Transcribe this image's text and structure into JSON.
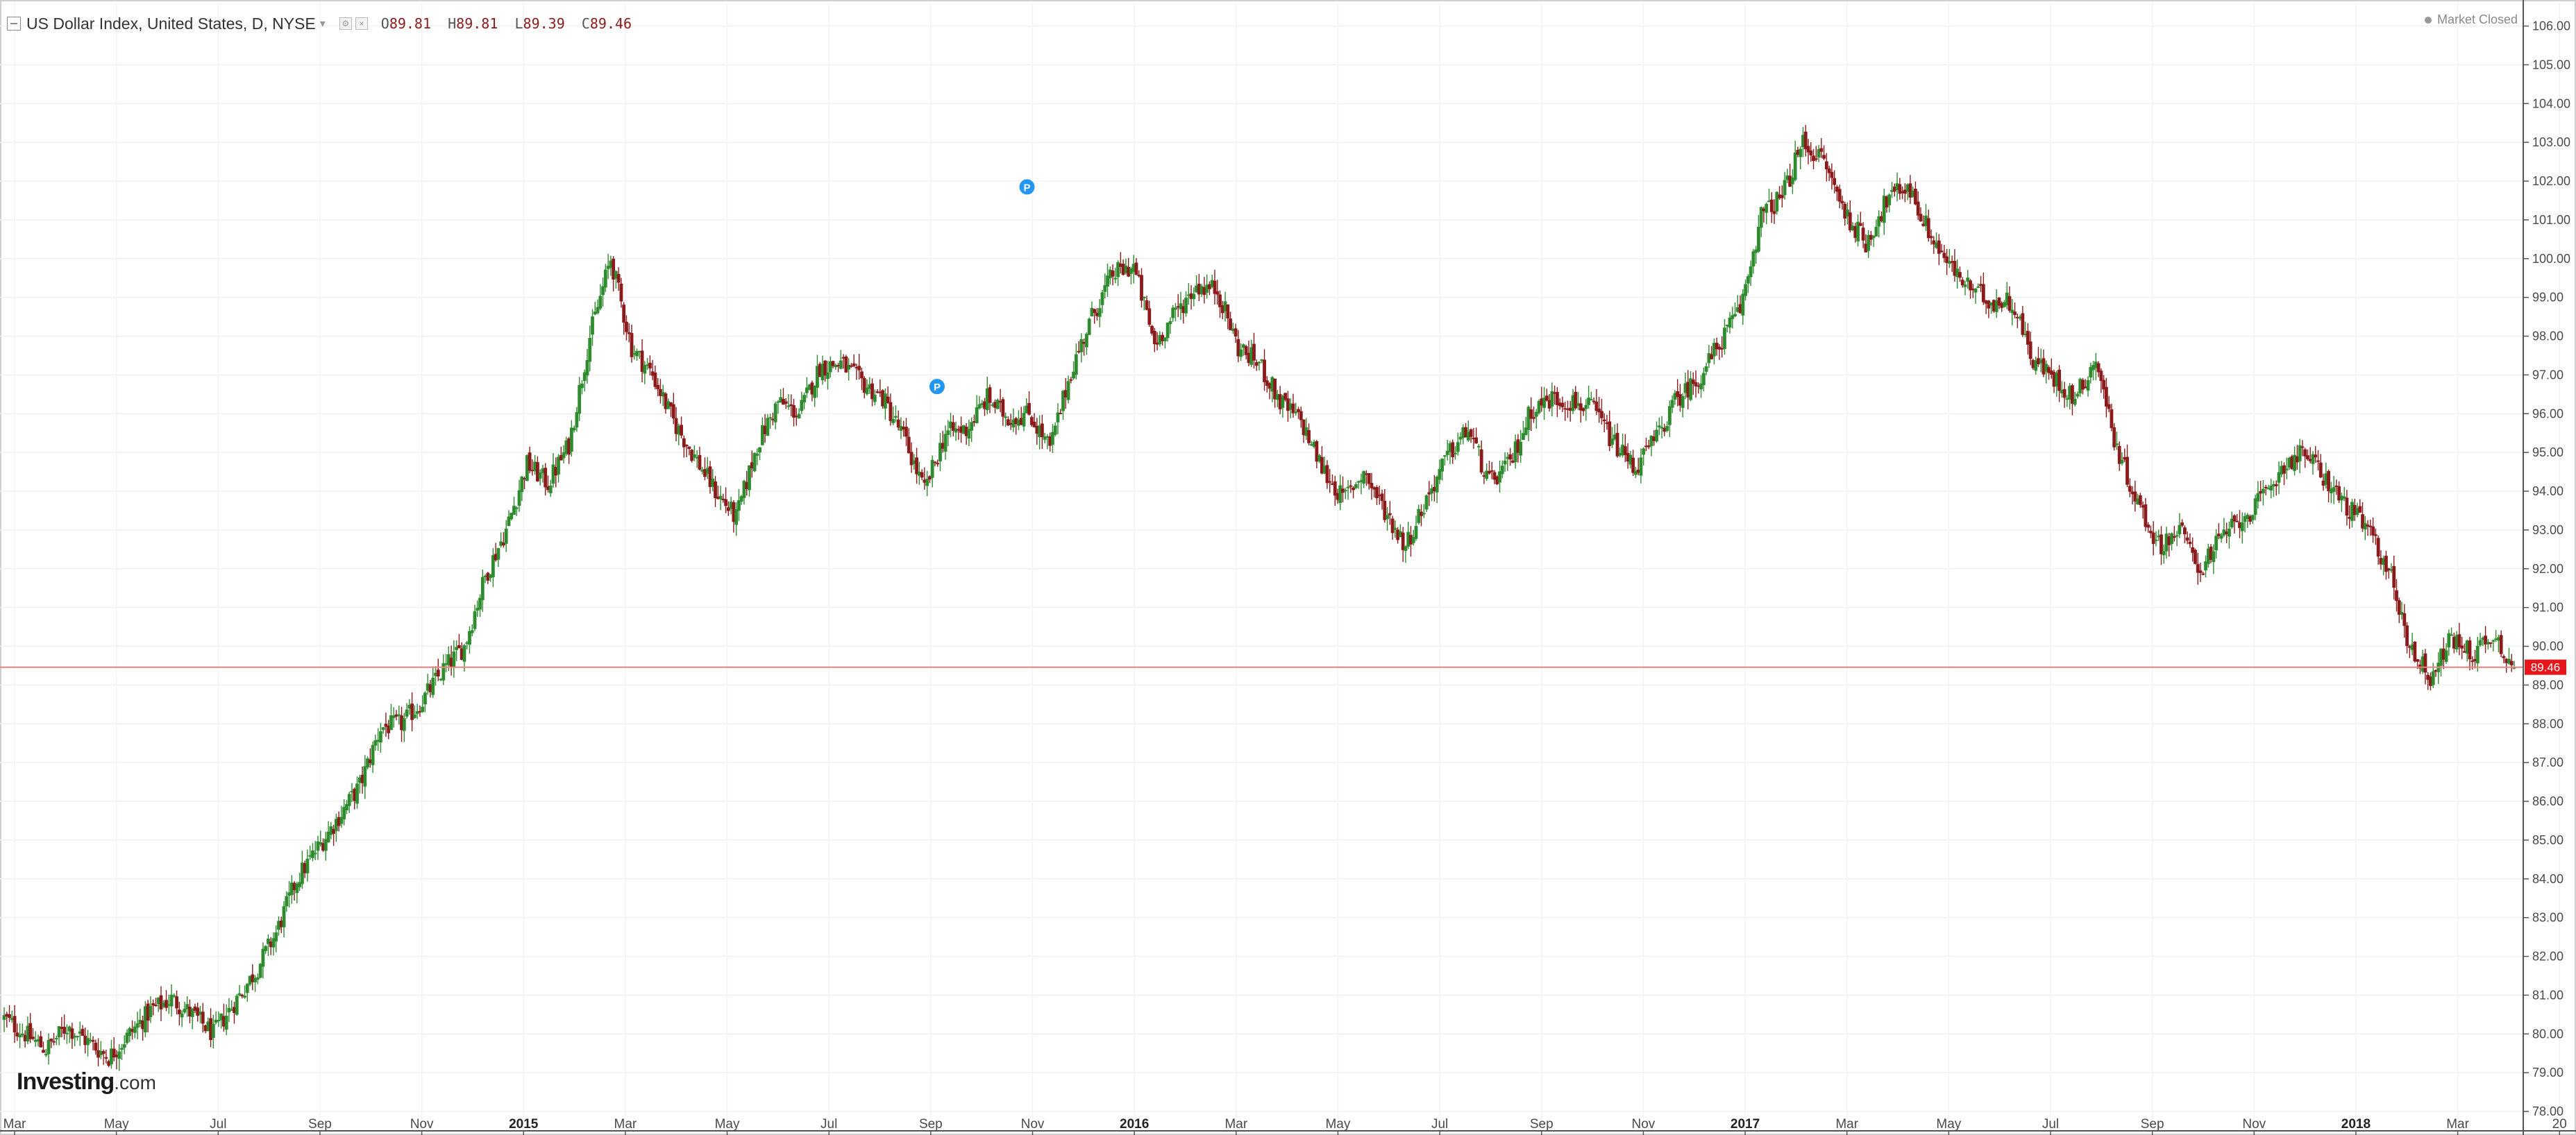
{
  "header": {
    "title": "US Dollar Index, United States, D, NYSE",
    "open_label": "O",
    "open": "89.81",
    "high_label": "H",
    "high": "89.81",
    "low_label": "L",
    "low": "89.39",
    "close_label": "C",
    "close": "89.46",
    "market_status": "Market Closed"
  },
  "logo": {
    "brand": "Investing",
    "suffix": ".com"
  },
  "colors": {
    "up": "#2e8b2e",
    "down": "#8b1a1a",
    "price_line": "#f08080",
    "price_tag": "#e8161a",
    "marker": "#2196f3"
  },
  "chart_data": {
    "type": "candlestick",
    "ylim": [
      77.5,
      106.6
    ],
    "y_ticks": [
      "78.00",
      "79.00",
      "80.00",
      "81.00",
      "82.00",
      "83.00",
      "84.00",
      "85.00",
      "86.00",
      "87.00",
      "88.00",
      "89.00",
      "90.00",
      "91.00",
      "92.00",
      "93.00",
      "94.00",
      "95.00",
      "96.00",
      "97.00",
      "98.00",
      "99.00",
      "100.00",
      "101.00",
      "102.00",
      "103.00",
      "104.00",
      "105.00",
      "106.00"
    ],
    "x_ticks": [
      {
        "label": "Mar",
        "year": false
      },
      {
        "label": "May",
        "year": false
      },
      {
        "label": "Jul",
        "year": false
      },
      {
        "label": "Sep",
        "year": false
      },
      {
        "label": "Nov",
        "year": false
      },
      {
        "label": "2015",
        "year": true
      },
      {
        "label": "Mar",
        "year": false
      },
      {
        "label": "May",
        "year": false
      },
      {
        "label": "Jul",
        "year": false
      },
      {
        "label": "Sep",
        "year": false
      },
      {
        "label": "Nov",
        "year": false
      },
      {
        "label": "2016",
        "year": true
      },
      {
        "label": "Mar",
        "year": false
      },
      {
        "label": "May",
        "year": false
      },
      {
        "label": "Jul",
        "year": false
      },
      {
        "label": "Sep",
        "year": false
      },
      {
        "label": "Nov",
        "year": false
      },
      {
        "label": "2017",
        "year": true
      },
      {
        "label": "Mar",
        "year": false
      },
      {
        "label": "May",
        "year": false
      },
      {
        "label": "Jul",
        "year": false
      },
      {
        "label": "Sep",
        "year": false
      },
      {
        "label": "Nov",
        "year": false
      },
      {
        "label": "2018",
        "year": true
      },
      {
        "label": "Mar",
        "year": false
      },
      {
        "label": "20",
        "year": false
      }
    ],
    "last_price": "89.46",
    "markers": [
      {
        "label": "P",
        "date_index": 44.6,
        "price": 96.7
      },
      {
        "label": "P",
        "date_index": 48.9,
        "price": 101.85
      }
    ],
    "path_note": "approximate closes sampled about every 2 weeks, Mar 2014 to Apr 2018",
    "closes": [
      80.4,
      80.0,
      79.6,
      80.2,
      79.8,
      79.4,
      80.0,
      80.6,
      80.9,
      80.5,
      80.0,
      80.8,
      81.6,
      82.6,
      84.0,
      84.8,
      85.6,
      86.4,
      87.9,
      88.0,
      88.6,
      89.4,
      90.0,
      91.8,
      93.0,
      94.7,
      94.2,
      95.2,
      98.0,
      100.0,
      97.7,
      97.0,
      95.8,
      94.9,
      94.0,
      93.3,
      95.2,
      96.3,
      96.0,
      97.2,
      97.3,
      96.8,
      96.4,
      95.4,
      94.0,
      95.5,
      95.6,
      96.4,
      95.9,
      96.0,
      95.1,
      97.1,
      98.5,
      99.6,
      99.8,
      97.8,
      98.6,
      99.3,
      99.2,
      97.7,
      97.3,
      96.3,
      95.8,
      94.6,
      93.8,
      94.5,
      93.5,
      92.6,
      93.8,
      94.9,
      95.6,
      94.2,
      94.7,
      96.1,
      96.4,
      96.3,
      96.1,
      95.2,
      94.6,
      95.4,
      96.4,
      96.9,
      97.8,
      98.7,
      101.1,
      101.6,
      103.0,
      102.5,
      101.2,
      100.4,
      101.5,
      101.9,
      100.7,
      99.8,
      99.2,
      98.9,
      98.9,
      97.4,
      96.9,
      96.4,
      97.4,
      95.1,
      93.7,
      92.6,
      93.0,
      92.0,
      92.8,
      93.3,
      93.8,
      94.7,
      95.0,
      94.3,
      93.6,
      93.0,
      92.0,
      90.0,
      89.2,
      90.2,
      89.8,
      90.3,
      89.5
    ]
  }
}
